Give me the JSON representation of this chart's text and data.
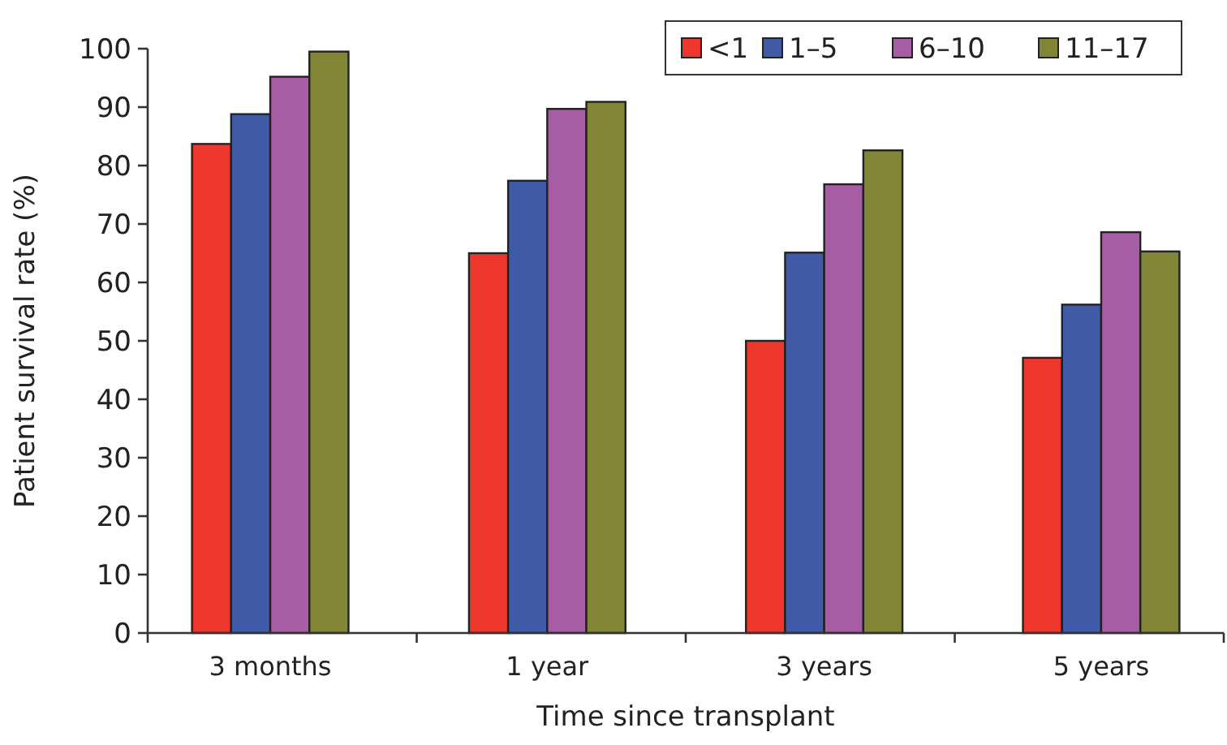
{
  "chart_data": {
    "type": "bar",
    "xlabel": "Time since transplant",
    "ylabel": "Patient survival rate (%)",
    "categories": [
      "3 months",
      "1 year",
      "3 years",
      "5 years"
    ],
    "series": [
      {
        "name": "<1",
        "color": "#ee372c",
        "values": [
          83.7,
          65.0,
          50.0,
          47.1
        ]
      },
      {
        "name": "1–5",
        "color": "#3f5ba7",
        "values": [
          88.8,
          77.4,
          65.1,
          56.2
        ]
      },
      {
        "name": "6–10",
        "color": "#a75da4",
        "values": [
          95.2,
          89.7,
          76.8,
          68.6
        ]
      },
      {
        "name": "11–17",
        "color": "#828436",
        "values": [
          99.5,
          90.9,
          82.6,
          65.3
        ]
      }
    ],
    "ylim": [
      0,
      100
    ],
    "yticks": [
      0,
      10,
      20,
      30,
      40,
      50,
      60,
      70,
      80,
      90,
      100
    ],
    "grid": false,
    "legend": "top right"
  }
}
